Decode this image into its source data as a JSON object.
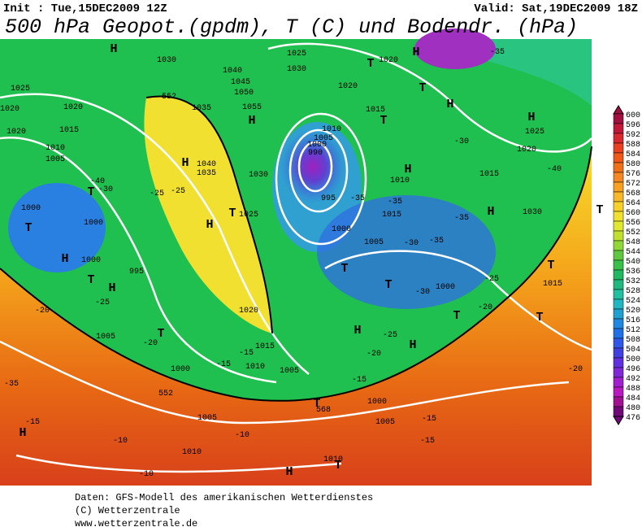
{
  "header": {
    "init": "Init : Tue,15DEC2009 12Z",
    "valid": "Valid: Sat,19DEC2009 18Z",
    "title": "500 hPa Geopot.(gpdm), T (C) und Bodendr. (hPa)"
  },
  "legend": {
    "labels": [
      "600",
      "596",
      "592",
      "588",
      "584",
      "580",
      "576",
      "572",
      "568",
      "564",
      "560",
      "556",
      "552",
      "548",
      "544",
      "540",
      "536",
      "532",
      "528",
      "524",
      "520",
      "516",
      "512",
      "508",
      "504",
      "500",
      "496",
      "492",
      "488",
      "484",
      "480",
      "476"
    ]
  },
  "map": {
    "labels": [
      "H",
      "T",
      "H",
      "T",
      "H",
      "T",
      "H",
      "H",
      "T",
      "H",
      "T",
      "H",
      "T",
      "H",
      "H",
      "T",
      "H",
      "T",
      "T",
      "H",
      "T",
      "H",
      "T",
      "T",
      "H",
      "H",
      "T",
      "T",
      "H",
      "T",
      "T",
      "1030",
      "1025",
      "1020",
      "1015",
      "1010",
      "1005",
      "1000",
      "1000",
      "1000",
      "995",
      "1005",
      "1000",
      "1005",
      "1010",
      "1020",
      "1015",
      "1010",
      "1005",
      "1000",
      "1005",
      "1010",
      "1025",
      "1030",
      "1040",
      "1045",
      "1050",
      "1055",
      "1035",
      "1040",
      "1035",
      "1030",
      "1025",
      "1020",
      "1015",
      "1010",
      "1005",
      "1000",
      "990",
      "995",
      "1000",
      "1005",
      "1000",
      "1015",
      "1020",
      "1025",
      "1030",
      "1015",
      "1020",
      "1020",
      "1015",
      "1010",
      "1020",
      "-35",
      "-40",
      "-30",
      "-25",
      "-25",
      "-20",
      "-15",
      "-10",
      "-10",
      "-10",
      "-15",
      "-20",
      "-25",
      "-30",
      "-35",
      "-35",
      "-30",
      "-35",
      "-35",
      "-40",
      "-25",
      "-20",
      "-20",
      "-15",
      "-15",
      "-15",
      "-20",
      "-25",
      "-30",
      "-35",
      "-15",
      "552",
      "552",
      "568",
      "568"
    ]
  },
  "footer": {
    "lines": [
      "Daten: GFS-Modell des amerikanischen Wetterdienstes",
      "(C) Wetterzentrale",
      "www.wetterzentrale.de"
    ]
  }
}
